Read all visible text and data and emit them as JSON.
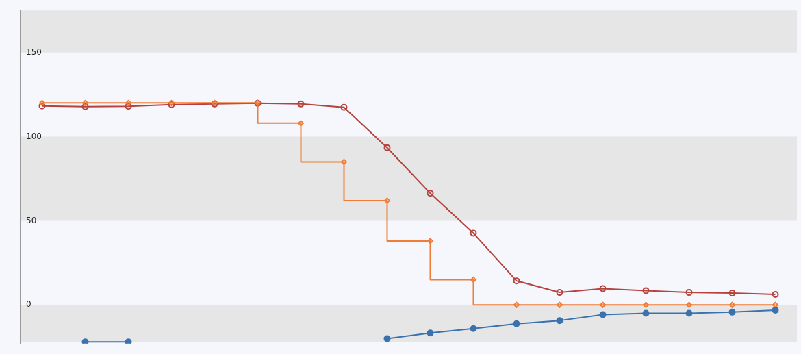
{
  "chart_data": {
    "type": "line",
    "categories": [
      null,
      null,
      null,
      null,
      null,
      null,
      null,
      null,
      null,
      null,
      null,
      null,
      null,
      null,
      null,
      null,
      null,
      null
    ],
    "series": [
      {
        "name": null,
        "type": "line",
        "marker": "circle",
        "color": "#b5423c",
        "values": [
          118.2,
          117.8,
          118,
          119,
          119.4,
          119.8,
          119.4,
          117.4,
          93.4,
          66.3,
          42.6,
          14.3,
          7.4,
          9.7,
          8.5,
          7.4,
          7,
          6.2
        ]
      },
      {
        "name": null,
        "type": "step",
        "marker": "diamond",
        "color": "#f07c36",
        "values": [
          120,
          120,
          120,
          120,
          120,
          120,
          108,
          85,
          62,
          38,
          15,
          0,
          0,
          0,
          0,
          0,
          0,
          0
        ]
      },
      {
        "name": null,
        "type": "line",
        "marker": "circle",
        "color": "#3a72b0",
        "values": [
          null,
          -22,
          -22,
          null,
          null,
          null,
          null,
          null,
          -20,
          -16.7,
          -14,
          -11.2,
          -9.3,
          -5.8,
          -5,
          -5,
          -4.3,
          -3.1
        ]
      }
    ],
    "ylim": [
      -23,
      175
    ],
    "yticks": [
      0,
      50,
      100,
      150
    ],
    "tick_labels": "y",
    "grid": false,
    "bands": [
      {
        "axis": "y",
        "from": -22,
        "to": 0,
        "color": "#e6e6e6"
      },
      {
        "axis": "y",
        "from": 50,
        "to": 100,
        "color": "#e6e6e6"
      },
      {
        "axis": "y",
        "from": 150,
        "to": 175,
        "color": "#e6e6e6"
      }
    ],
    "legend": false
  }
}
